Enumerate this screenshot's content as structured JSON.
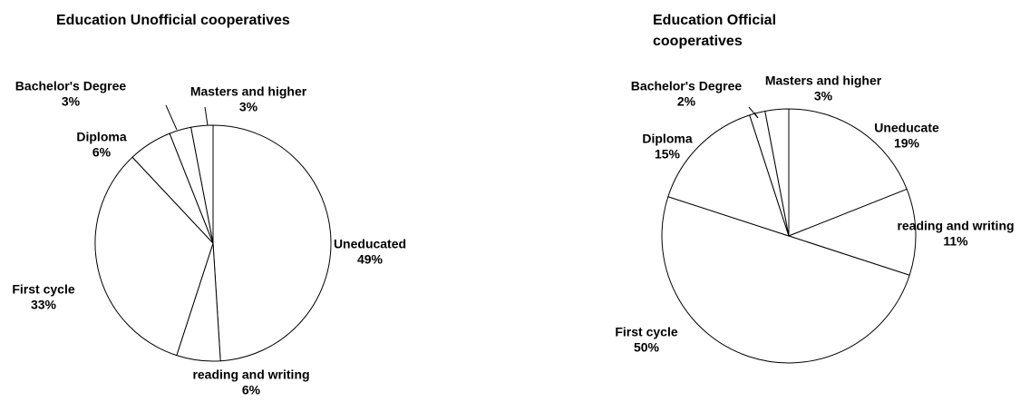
{
  "chart_data": [
    {
      "type": "pie",
      "title": "Education Unofficial cooperatives",
      "categories": [
        "Uneducated",
        "reading and writing",
        "First cycle",
        "Diploma",
        "Bachelor's Degree",
        "Masters and higher"
      ],
      "values": [
        49,
        6,
        33,
        6,
        3,
        3
      ],
      "value_labels": [
        "49%",
        "6%",
        "33%",
        "6%",
        "3%",
        "3%"
      ],
      "color": "#ffffff"
    },
    {
      "type": "pie",
      "title": "Education Official cooperatives",
      "categories": [
        "Uneducate",
        "reading and writing",
        "First cycle",
        "Diploma",
        "Bachelor's Degree",
        "Masters and higher"
      ],
      "values": [
        19,
        11,
        50,
        15,
        2,
        3
      ],
      "value_labels": [
        "19%",
        "11%",
        "50%",
        "15%",
        "2%",
        "3%"
      ],
      "color": "#ffffff"
    }
  ]
}
